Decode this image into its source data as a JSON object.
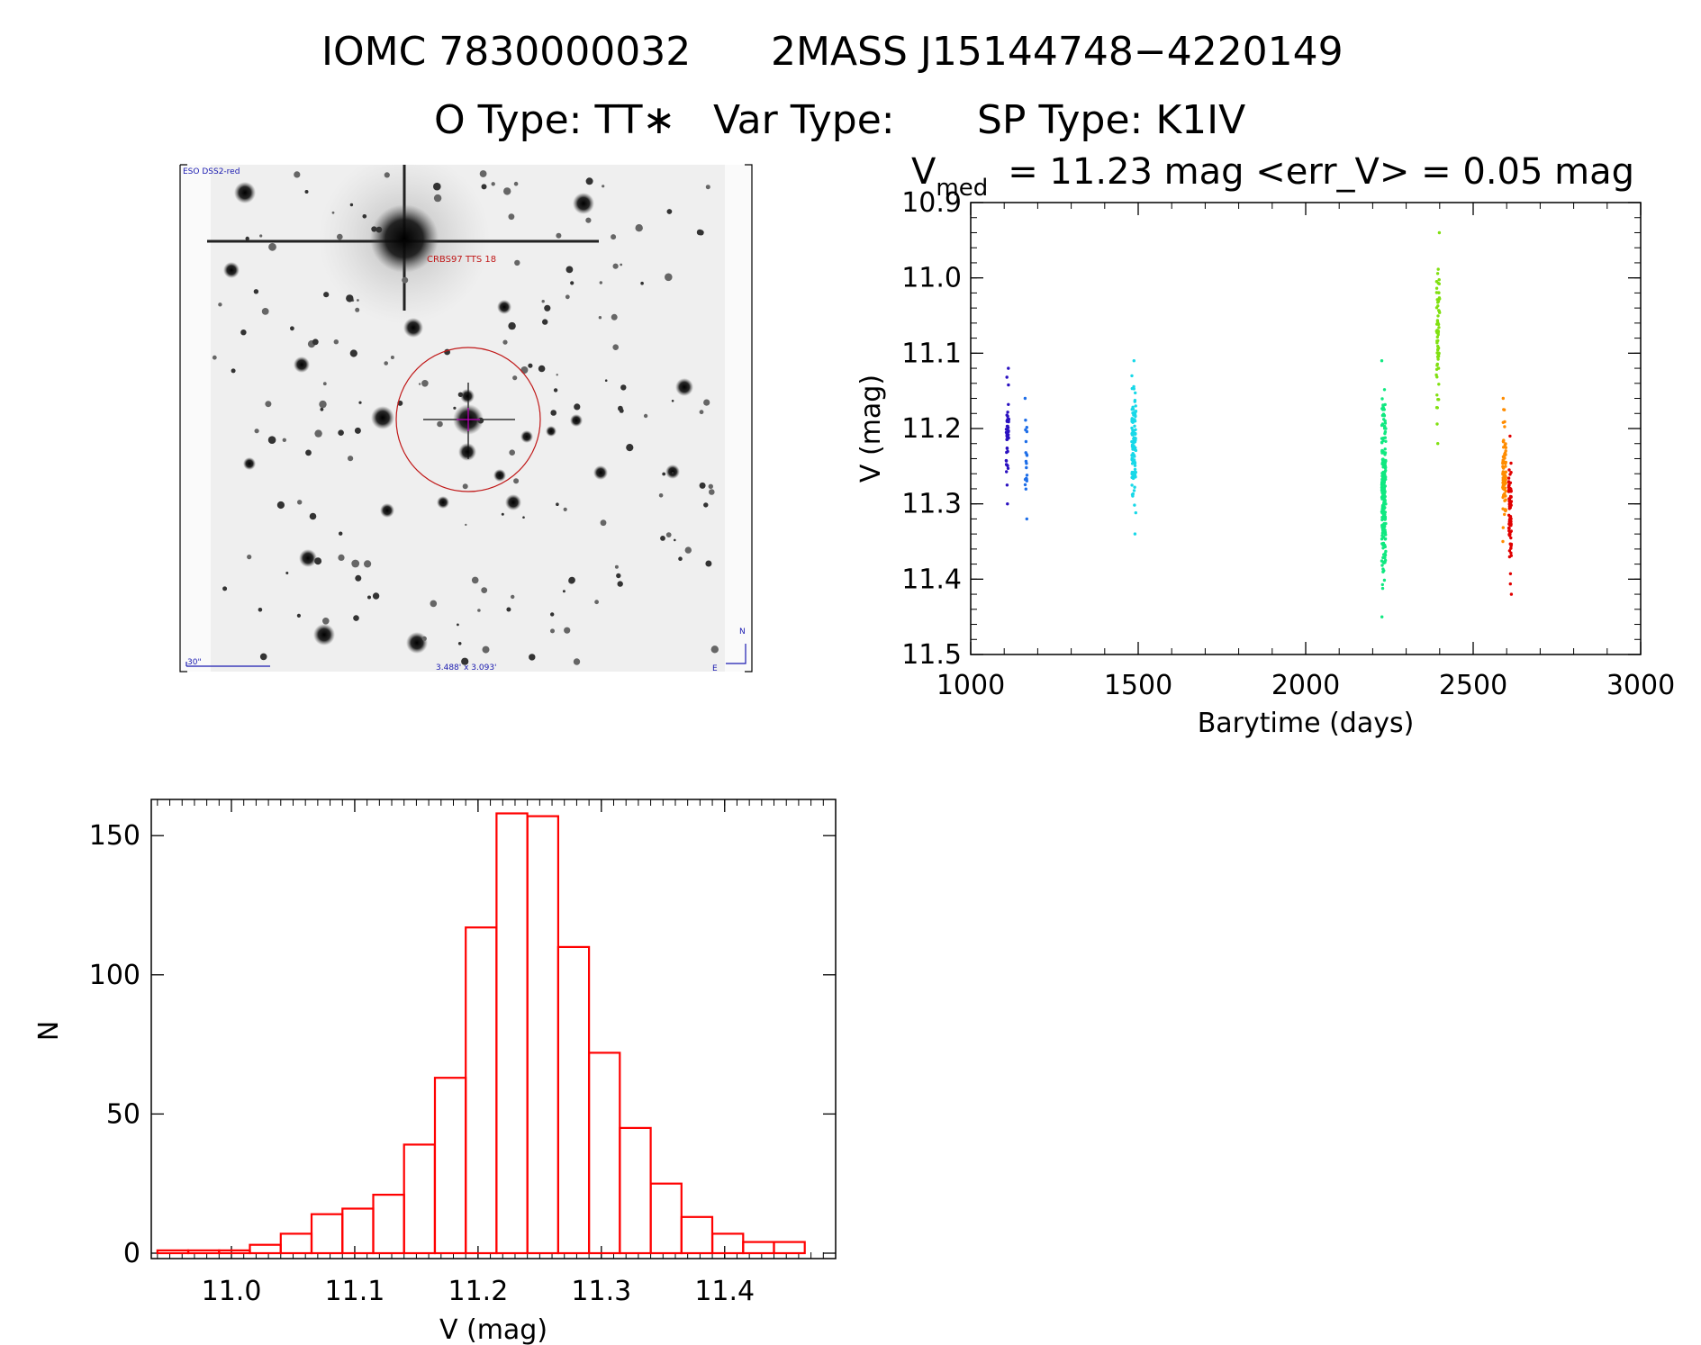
{
  "header": {
    "line1_id": "IOMC 7830000032",
    "line1_2mass": "2MASS J15144748−4220149",
    "otype": "O Type: TT∗",
    "vartype": "Var Type:",
    "sptype": "SP Type: K1IV"
  },
  "finder": {
    "survey_label": "ESO DSS2-red",
    "target_label": "CRBS97 TTS 18",
    "scale_label": "30\"",
    "fov_label": "3.488' x 3.093'",
    "north_label": "N",
    "east_label": "E"
  },
  "colors": {
    "histogram_red": "#ff0000",
    "circle": "#c01818",
    "crosshair": "#c000c0",
    "compass": "#1a1ab0"
  },
  "chart_data": [
    {
      "type": "scatter",
      "title_prefix": "V",
      "title_sub": "med",
      "title_rest": "= 11.23 mag <err_V> = 0.05 mag",
      "xlabel": "Barytime (days)",
      "ylabel": "V (mag)",
      "xlim": [
        1000,
        3000
      ],
      "ylim": [
        10.9,
        11.5
      ],
      "y_inverted": true,
      "x_ticks": [
        1000,
        1500,
        2000,
        2500,
        3000
      ],
      "x_ticklabels": [
        "1000",
        "1500",
        "2000",
        "2500",
        "3000"
      ],
      "y_ticks": [
        10.9,
        11.0,
        11.1,
        11.2,
        11.3,
        11.4,
        11.5
      ],
      "y_ticklabels": [
        "10.9",
        "11.0",
        "11.1",
        "11.2",
        "11.3",
        "11.4",
        "11.5"
      ],
      "clusters": [
        {
          "x": 1110,
          "dx": 4,
          "ymin": 11.12,
          "ymax": 11.3,
          "n": 45,
          "color": "#2a10c0"
        },
        {
          "x": 1165,
          "dx": 3,
          "ymin": 11.16,
          "ymax": 11.32,
          "n": 20,
          "color": "#1e6ee8"
        },
        {
          "x": 1487,
          "dx": 6,
          "ymin": 11.11,
          "ymax": 11.34,
          "n": 110,
          "color": "#18d8e8"
        },
        {
          "x": 2233,
          "dx": 6,
          "ymin": 11.11,
          "ymax": 11.45,
          "n": 230,
          "color": "#10e880"
        },
        {
          "x": 2395,
          "dx": 5,
          "ymin": 10.94,
          "ymax": 11.22,
          "n": 65,
          "color": "#80e010"
        },
        {
          "x": 2593,
          "dx": 5,
          "ymin": 11.16,
          "ymax": 11.35,
          "n": 90,
          "color": "#ff8c00"
        },
        {
          "x": 2610,
          "dx": 4,
          "ymin": 11.21,
          "ymax": 11.42,
          "n": 75,
          "color": "#e00000"
        }
      ]
    },
    {
      "type": "bar",
      "subtype": "histogram",
      "xlabel": "V (mag)",
      "ylabel": "N",
      "xlim": [
        10.935,
        11.49
      ],
      "ylim": [
        0,
        163
      ],
      "bin_width": 0.025,
      "bin_start": 10.94,
      "values": [
        1,
        1,
        1,
        3,
        7,
        14,
        16,
        21,
        39,
        63,
        117,
        158,
        157,
        110,
        72,
        45,
        25,
        13,
        7,
        4,
        4
      ],
      "x_ticks": [
        11.0,
        11.1,
        11.2,
        11.3,
        11.4
      ],
      "x_ticklabels": [
        "11.0",
        "11.1",
        "11.2",
        "11.3",
        "11.4"
      ],
      "y_ticks": [
        0,
        50,
        100,
        150
      ],
      "y_ticklabels": [
        "0",
        "50",
        "100",
        "150"
      ],
      "color": "#ff0000"
    }
  ]
}
